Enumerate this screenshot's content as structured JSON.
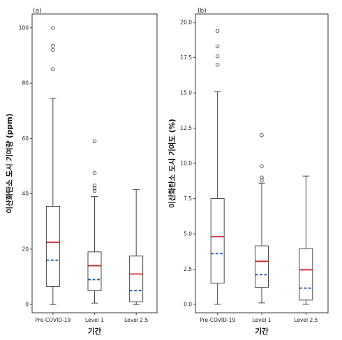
{
  "chart_data": [
    {
      "type": "box",
      "panel_label": "(a)",
      "xlabel": "기간",
      "ylabel": "이산화탄소 도시 기여량 (ppm)",
      "ylim": [
        -3,
        105
      ],
      "yticks": [
        0,
        20,
        40,
        60,
        80,
        100
      ],
      "ytick_labels": [
        "0",
        "20",
        "40",
        "60",
        "80",
        "100"
      ],
      "categories": [
        "Pre-COVID-19",
        "Level 1",
        "Level 2.5"
      ],
      "boxes": [
        {
          "whisker_low": 0,
          "q1": 6.5,
          "median": 22.5,
          "mean": 16,
          "q3": 35.5,
          "whisker_high": 74.5,
          "outliers": [
            85,
            92,
            93.5,
            100
          ]
        },
        {
          "whisker_low": 0.5,
          "q1": 5,
          "median": 14,
          "mean": 9,
          "q3": 19,
          "whisker_high": 39,
          "outliers": [
            41,
            42,
            43,
            47.5,
            59
          ]
        },
        {
          "whisker_low": 0,
          "q1": 1,
          "median": 11,
          "mean": 5,
          "q3": 17.5,
          "whisker_high": 41.5,
          "outliers": []
        }
      ]
    },
    {
      "type": "box",
      "panel_label": "(b)",
      "xlabel": "기간",
      "ylabel": "이산화탄소 도시 기여도 (%)",
      "ylim": [
        -0.6,
        20.6
      ],
      "yticks": [
        0,
        2.5,
        5,
        7.5,
        10,
        12.5,
        15,
        17.5,
        20
      ],
      "ytick_labels": [
        "0.0",
        "2.5",
        "5.0",
        "7.5",
        "10.0",
        "12.5",
        "15.0",
        "17.5",
        "20.0"
      ],
      "categories": [
        "Pre-COVID-19",
        "Level 1",
        "Level 2.5"
      ],
      "boxes": [
        {
          "whisker_low": 0,
          "q1": 1.5,
          "median": 4.8,
          "mean": 3.6,
          "q3": 7.5,
          "whisker_high": 15.1,
          "outliers": [
            17,
            17.6,
            18.3,
            19.4
          ]
        },
        {
          "whisker_low": 0.1,
          "q1": 1.2,
          "median": 3.05,
          "mean": 2.1,
          "q3": 4.15,
          "whisker_high": 8.6,
          "outliers": [
            8.8,
            9,
            9.8,
            12
          ]
        },
        {
          "whisker_low": 0,
          "q1": 0.3,
          "median": 2.45,
          "mean": 1.15,
          "q3": 3.95,
          "whisker_high": 9.1,
          "outliers": []
        }
      ]
    }
  ],
  "colors": {
    "median": "#d62728",
    "mean": "#1f5fa6",
    "box": "#333333"
  }
}
